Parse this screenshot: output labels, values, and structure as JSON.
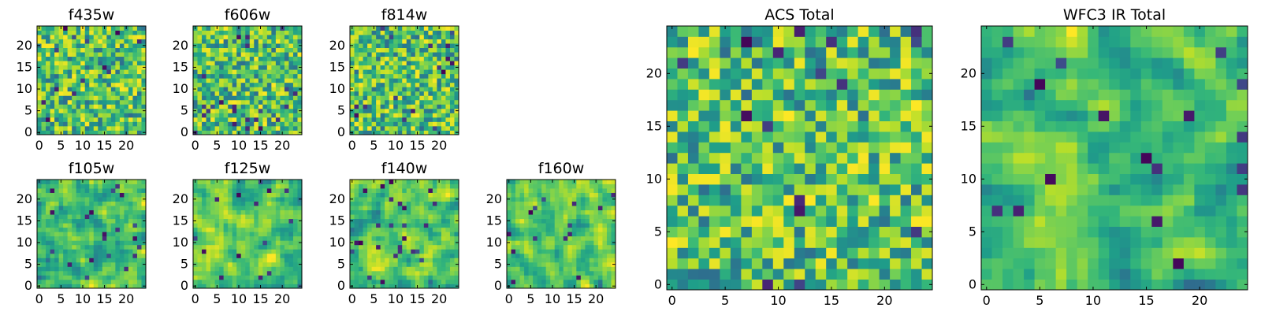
{
  "chart_data": {
    "type": "heatmap",
    "colormap": "viridis",
    "panels": [
      {
        "id": "f435w",
        "title": "f435w",
        "size": 25,
        "seed": 11,
        "smooth": 0,
        "xticks": [
          "0",
          "5",
          "10",
          "15",
          "20"
        ],
        "yticks": [
          "0",
          "5",
          "10",
          "15",
          "20"
        ],
        "xtick_values": [
          0,
          5,
          10,
          15,
          20
        ],
        "ytick_values": [
          0,
          5,
          10,
          15,
          20
        ]
      },
      {
        "id": "f606w",
        "title": "f606w",
        "size": 25,
        "seed": 23,
        "smooth": 0,
        "xticks": [
          "0",
          "5",
          "10",
          "15",
          "20"
        ],
        "yticks": [
          "0",
          "5",
          "10",
          "15",
          "20"
        ],
        "xtick_values": [
          0,
          5,
          10,
          15,
          20
        ],
        "ytick_values": [
          0,
          5,
          10,
          15,
          20
        ]
      },
      {
        "id": "f814w",
        "title": "f814w",
        "size": 25,
        "seed": 37,
        "smooth": 0,
        "xticks": [
          "0",
          "5",
          "10",
          "15",
          "20"
        ],
        "yticks": [
          "0",
          "5",
          "10",
          "15",
          "20"
        ],
        "xtick_values": [
          0,
          5,
          10,
          15,
          20
        ],
        "ytick_values": [
          0,
          5,
          10,
          15,
          20
        ]
      },
      {
        "id": "f105w",
        "title": "f105w",
        "size": 25,
        "seed": 41,
        "smooth": 1,
        "xticks": [
          "0",
          "5",
          "10",
          "15",
          "20"
        ],
        "yticks": [
          "0",
          "5",
          "10",
          "15",
          "20"
        ],
        "xtick_values": [
          0,
          5,
          10,
          15,
          20
        ],
        "ytick_values": [
          0,
          5,
          10,
          15,
          20
        ]
      },
      {
        "id": "f125w",
        "title": "f125w",
        "size": 25,
        "seed": 53,
        "smooth": 1,
        "xticks": [
          "0",
          "5",
          "10",
          "15",
          "20"
        ],
        "yticks": [
          "0",
          "5",
          "10",
          "15",
          "20"
        ],
        "xtick_values": [
          0,
          5,
          10,
          15,
          20
        ],
        "ytick_values": [
          0,
          5,
          10,
          15,
          20
        ]
      },
      {
        "id": "f140w",
        "title": "f140w",
        "size": 25,
        "seed": 67,
        "smooth": 1,
        "xticks": [
          "0",
          "5",
          "10",
          "15",
          "20"
        ],
        "yticks": [
          "0",
          "5",
          "10",
          "15",
          "20"
        ],
        "xtick_values": [
          0,
          5,
          10,
          15,
          20
        ],
        "ytick_values": [
          0,
          5,
          10,
          15,
          20
        ]
      },
      {
        "id": "f160w",
        "title": "f160w",
        "size": 25,
        "seed": 79,
        "smooth": 1,
        "xticks": [
          "0",
          "5",
          "10",
          "15",
          "20"
        ],
        "yticks": [
          "0",
          "5",
          "10",
          "15",
          "20"
        ],
        "xtick_values": [
          0,
          5,
          10,
          15,
          20
        ],
        "ytick_values": [
          0,
          5,
          10,
          15,
          20
        ]
      },
      {
        "id": "acs_total",
        "title": "ACS Total",
        "size": 25,
        "seed": 97,
        "smooth": 0,
        "xticks": [
          "0",
          "5",
          "10",
          "15",
          "20"
        ],
        "yticks": [
          "0",
          "5",
          "10",
          "15",
          "20"
        ],
        "xtick_values": [
          0,
          5,
          10,
          15,
          20
        ],
        "ytick_values": [
          0,
          5,
          10,
          15,
          20
        ]
      },
      {
        "id": "wfc3_ir_total",
        "title": "WFC3 IR Total",
        "size": 25,
        "seed": 101,
        "smooth": 1,
        "xticks": [
          "0",
          "5",
          "10",
          "15",
          "20"
        ],
        "yticks": [
          "0",
          "5",
          "10",
          "15",
          "20"
        ],
        "xtick_values": [
          0,
          5,
          10,
          15,
          20
        ],
        "ytick_values": [
          0,
          5,
          10,
          15,
          20
        ]
      }
    ]
  }
}
